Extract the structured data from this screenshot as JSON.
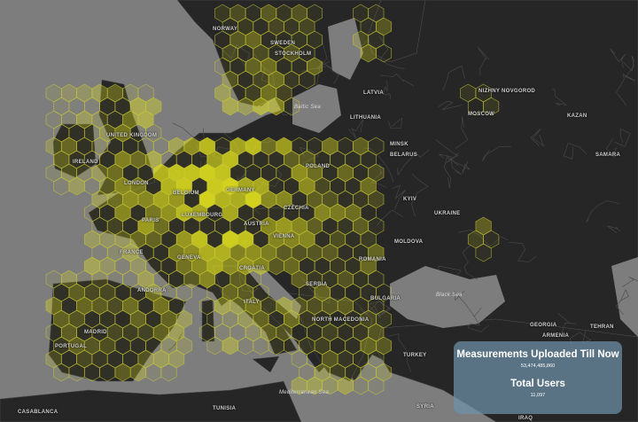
{
  "map": {
    "colors": {
      "land": "#262626",
      "sea": "#7d7d7d",
      "hex_stroke": "#c8c838",
      "hex_fill": "#e6e61e",
      "panel": "#6e91aa"
    },
    "labels": [
      "Norway",
      "Sweden",
      "Stockholm",
      "Latvia",
      "Lithuania",
      "Moscow",
      "Nizhny Novgorod",
      "Kazan",
      "United Kingdom",
      "Ireland",
      "London",
      "Belgium",
      "Luxembourg",
      "Germany",
      "Poland",
      "Minsk",
      "Belarus",
      "Samara",
      "Czechia",
      "Paris",
      "France",
      "Geneva",
      "Austria",
      "Vienna",
      "Kyiv",
      "Ukraine",
      "Moldova",
      "Croatia",
      "Romania",
      "Serbia",
      "Andorra",
      "Portugal",
      "Madrid",
      "Italy",
      "Bulgaria",
      "North Macedonia",
      "Georgia",
      "Armenia",
      "Turkey",
      "Tunisia",
      "Casablanca",
      "Syria",
      "Iraq",
      "Tehran"
    ],
    "sea_labels": [
      "Baltic Sea",
      "Black Sea",
      "Mediterranean Sea"
    ]
  },
  "panel": {
    "measurements_title": "Measurements Uploaded Till Now",
    "measurements_value": "53,474,485,860",
    "users_title": "Total Users",
    "users_value": "11,097"
  }
}
